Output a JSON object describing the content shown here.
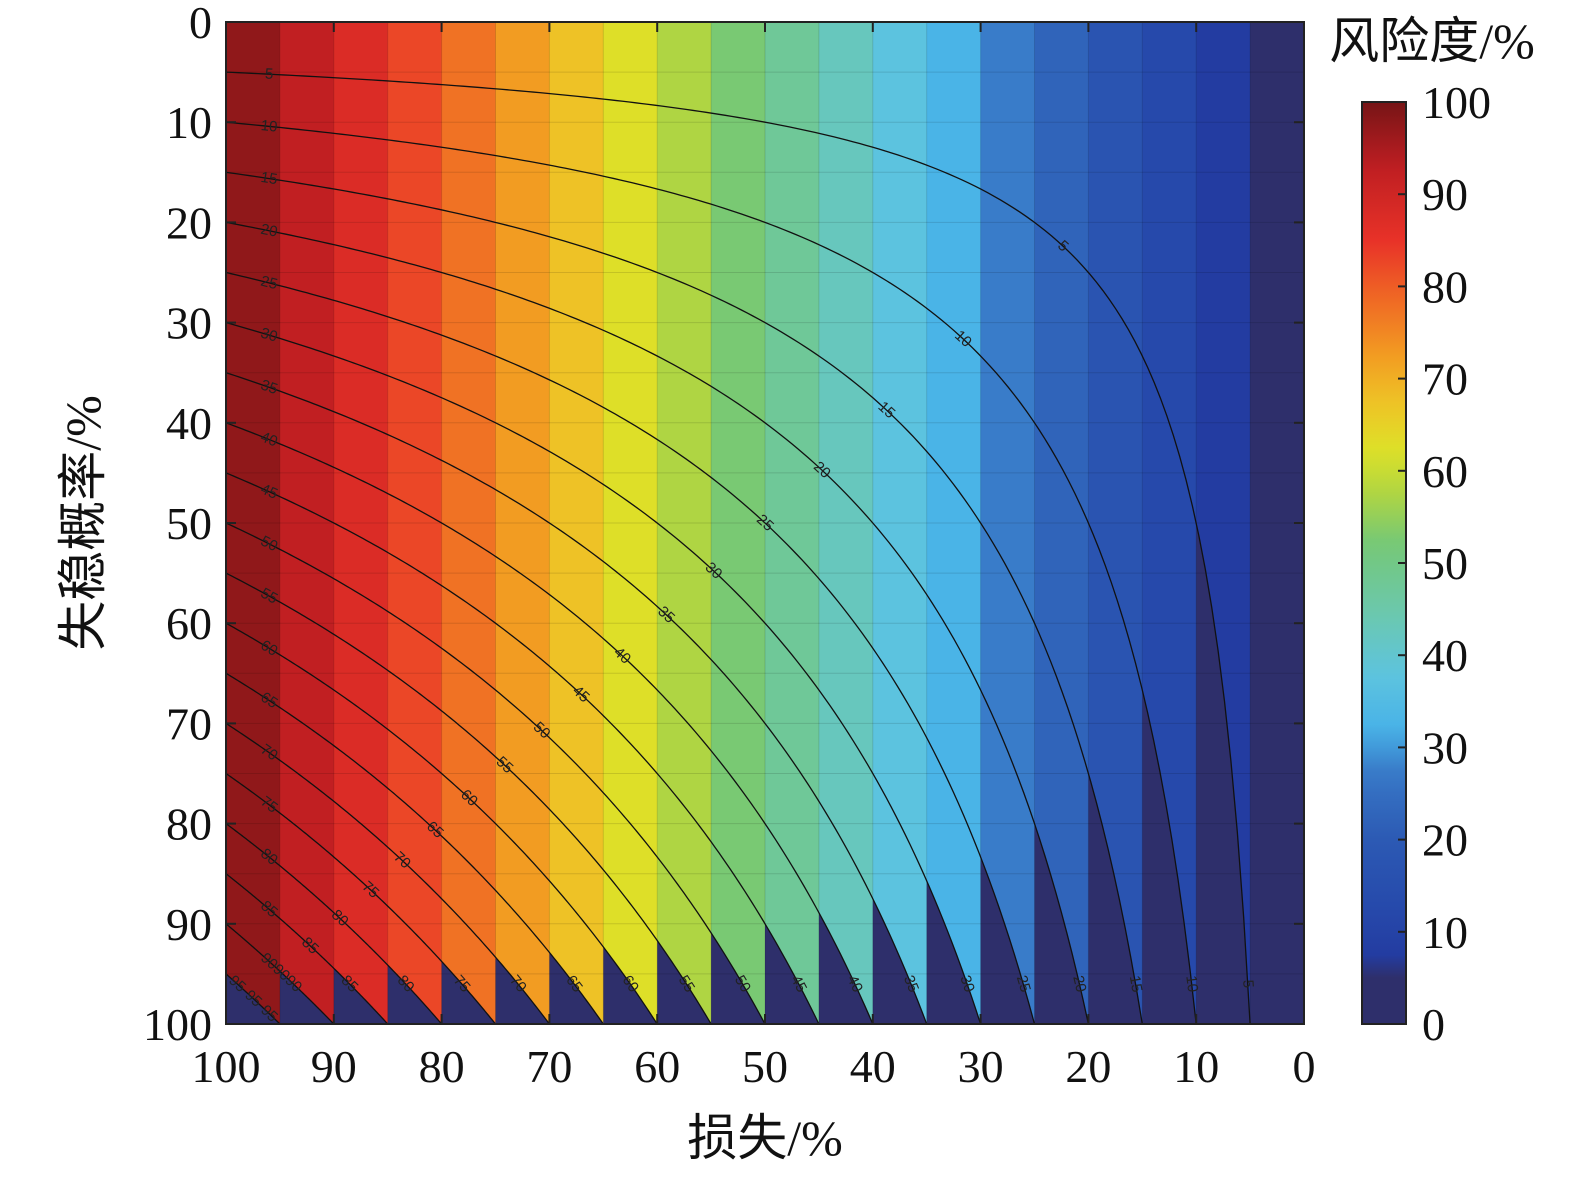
{
  "chart_data": {
    "type": "heatmap",
    "subtype": "filled-contour",
    "function": "risk = failure_probability * loss / 100",
    "xlabel": "损失/%",
    "ylabel": "失稳概率/%",
    "colorbar_title": "风险度/%",
    "x_ticks": [
      "100",
      "90",
      "80",
      "70",
      "60",
      "50",
      "40",
      "30",
      "20",
      "10",
      "0"
    ],
    "y_ticks": [
      "0",
      "10",
      "20",
      "30",
      "40",
      "50",
      "60",
      "70",
      "80",
      "90",
      "100"
    ],
    "colorbar_ticks": [
      "100",
      "90",
      "80",
      "70",
      "60",
      "50",
      "40",
      "30",
      "20",
      "10",
      "0"
    ],
    "xlim": [
      100,
      0
    ],
    "ylim": [
      0,
      100
    ],
    "x_reversed": true,
    "y_reversed": true,
    "colorbar_range": [
      0,
      100
    ],
    "contour_levels": [
      5,
      10,
      15,
      20,
      25,
      30,
      35,
      40,
      45,
      50,
      55,
      60,
      65,
      70,
      75,
      80,
      85,
      90,
      95
    ],
    "contour_labels": [
      "5",
      "10",
      "15",
      "20",
      "25",
      "30",
      "35",
      "40",
      "45",
      "50",
      "55",
      "60",
      "65",
      "70",
      "75",
      "80",
      "85",
      "90",
      "95"
    ],
    "colormap": "parula-like (dark blue → blue → cyan → green → yellow → orange → red → dark red)",
    "colors": {
      "low": "#2e2f6b",
      "mid": "#6cc99a",
      "high": "#7a1818",
      "contour_line": "#111111"
    },
    "grid": true,
    "legend": "colorbar on right"
  }
}
